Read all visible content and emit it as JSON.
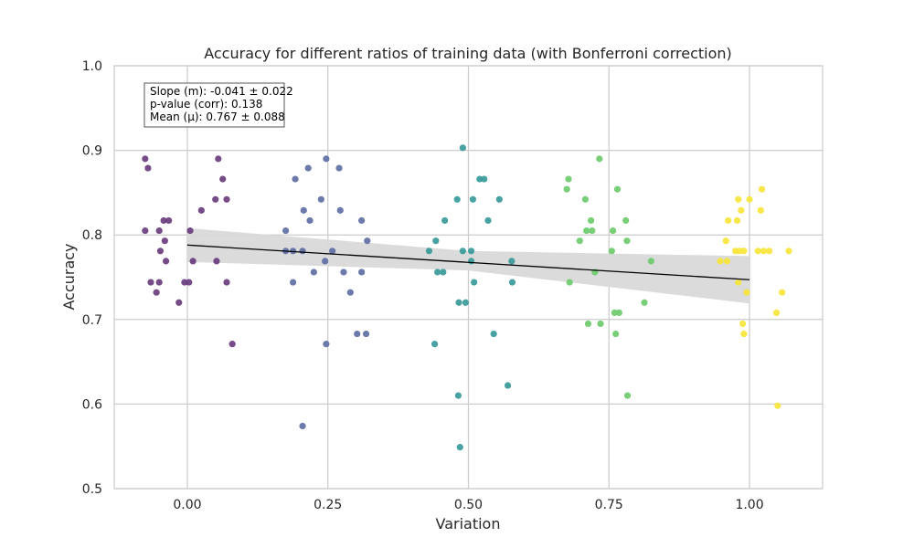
{
  "chart_data": {
    "type": "scatter",
    "title": "Accuracy for different ratios of training data (with Bonferroni correction)",
    "xlabel": "Variation",
    "ylabel": "Accuracy",
    "xlim": [
      -0.13,
      1.13
    ],
    "ylim": [
      0.5,
      1.0
    ],
    "x_ticks": [
      0.0,
      0.25,
      0.5,
      0.75,
      1.0
    ],
    "x_tick_labels": [
      "0.00",
      "0.25",
      "0.50",
      "0.75",
      "1.00"
    ],
    "y_ticks": [
      0.5,
      0.6,
      0.7,
      0.8,
      0.9,
      1.0
    ],
    "y_tick_labels": [
      "0.5",
      "0.6",
      "0.7",
      "0.8",
      "0.9",
      "1.0"
    ],
    "grid": true,
    "annotation": {
      "lines": [
        "Slope (m): -0.041 ± 0.022",
        "p-value (corr): 0.138",
        "Mean (μ): 0.767 ± 0.088"
      ],
      "placement": "top-left"
    },
    "regression": {
      "color": "#000000",
      "band_color": "#d9d9d9",
      "points": [
        [
          0.0,
          0.788
        ],
        [
          1.0,
          0.747
        ]
      ],
      "band_upper": [
        [
          0.0,
          0.808
        ],
        [
          0.5,
          0.781
        ],
        [
          1.0,
          0.775
        ]
      ],
      "band_lower": [
        [
          0.0,
          0.768
        ],
        [
          0.5,
          0.758
        ],
        [
          1.0,
          0.719
        ]
      ]
    },
    "series": [
      {
        "color": "#6a3d7e",
        "points": [
          [
            -0.075,
            0.89
          ],
          [
            -0.07,
            0.879
          ],
          [
            -0.075,
            0.805
          ],
          [
            -0.065,
            0.744
          ],
          [
            -0.055,
            0.732
          ],
          [
            -0.05,
            0.744
          ],
          [
            -0.05,
            0.805
          ],
          [
            -0.048,
            0.781
          ],
          [
            -0.042,
            0.817
          ],
          [
            -0.04,
            0.793
          ],
          [
            -0.038,
            0.769
          ],
          [
            -0.033,
            0.817
          ],
          [
            -0.015,
            0.72
          ],
          [
            -0.005,
            0.744
          ],
          [
            0.003,
            0.744
          ],
          [
            0.005,
            0.805
          ],
          [
            0.01,
            0.769
          ],
          [
            0.025,
            0.829
          ],
          [
            0.05,
            0.842
          ],
          [
            0.052,
            0.769
          ],
          [
            0.055,
            0.89
          ],
          [
            0.063,
            0.866
          ],
          [
            0.07,
            0.842
          ],
          [
            0.07,
            0.744
          ],
          [
            0.08,
            0.671
          ]
        ]
      },
      {
        "color": "#5e6ea4",
        "points": [
          [
            0.175,
            0.805
          ],
          [
            0.175,
            0.781
          ],
          [
            0.188,
            0.781
          ],
          [
            0.188,
            0.744
          ],
          [
            0.192,
            0.866
          ],
          [
            0.205,
            0.781
          ],
          [
            0.205,
            0.574
          ],
          [
            0.207,
            0.829
          ],
          [
            0.215,
            0.879
          ],
          [
            0.218,
            0.817
          ],
          [
            0.225,
            0.756
          ],
          [
            0.238,
            0.842
          ],
          [
            0.245,
            0.769
          ],
          [
            0.247,
            0.89
          ],
          [
            0.247,
            0.671
          ],
          [
            0.258,
            0.781
          ],
          [
            0.27,
            0.879
          ],
          [
            0.272,
            0.829
          ],
          [
            0.278,
            0.756
          ],
          [
            0.29,
            0.732
          ],
          [
            0.302,
            0.683
          ],
          [
            0.31,
            0.817
          ],
          [
            0.31,
            0.756
          ],
          [
            0.318,
            0.683
          ],
          [
            0.32,
            0.793
          ]
        ]
      },
      {
        "color": "#3a9a9a",
        "points": [
          [
            0.43,
            0.781
          ],
          [
            0.44,
            0.671
          ],
          [
            0.442,
            0.793
          ],
          [
            0.445,
            0.756
          ],
          [
            0.455,
            0.756
          ],
          [
            0.458,
            0.817
          ],
          [
            0.48,
            0.842
          ],
          [
            0.482,
            0.61
          ],
          [
            0.483,
            0.72
          ],
          [
            0.485,
            0.549
          ],
          [
            0.49,
            0.781
          ],
          [
            0.49,
            0.903
          ],
          [
            0.495,
            0.72
          ],
          [
            0.505,
            0.769
          ],
          [
            0.505,
            0.781
          ],
          [
            0.508,
            0.842
          ],
          [
            0.51,
            0.744
          ],
          [
            0.52,
            0.866
          ],
          [
            0.528,
            0.866
          ],
          [
            0.535,
            0.817
          ],
          [
            0.545,
            0.683
          ],
          [
            0.555,
            0.842
          ],
          [
            0.57,
            0.622
          ],
          [
            0.577,
            0.769
          ],
          [
            0.578,
            0.744
          ]
        ]
      },
      {
        "color": "#6ccb6c",
        "points": [
          [
            0.675,
            0.854
          ],
          [
            0.678,
            0.866
          ],
          [
            0.68,
            0.744
          ],
          [
            0.698,
            0.793
          ],
          [
            0.708,
            0.842
          ],
          [
            0.71,
            0.805
          ],
          [
            0.713,
            0.695
          ],
          [
            0.718,
            0.817
          ],
          [
            0.72,
            0.805
          ],
          [
            0.725,
            0.756
          ],
          [
            0.733,
            0.89
          ],
          [
            0.735,
            0.695
          ],
          [
            0.755,
            0.781
          ],
          [
            0.757,
            0.805
          ],
          [
            0.76,
            0.708
          ],
          [
            0.762,
            0.683
          ],
          [
            0.765,
            0.854
          ],
          [
            0.768,
            0.708
          ],
          [
            0.78,
            0.817
          ],
          [
            0.782,
            0.793
          ],
          [
            0.783,
            0.61
          ],
          [
            0.813,
            0.72
          ],
          [
            0.825,
            0.769
          ]
        ]
      },
      {
        "color": "#f7e53a",
        "points": [
          [
            0.948,
            0.769
          ],
          [
            0.958,
            0.793
          ],
          [
            0.96,
            0.769
          ],
          [
            0.962,
            0.817
          ],
          [
            0.975,
            0.781
          ],
          [
            0.978,
            0.817
          ],
          [
            0.98,
            0.842
          ],
          [
            0.98,
            0.744
          ],
          [
            0.982,
            0.781
          ],
          [
            0.985,
            0.829
          ],
          [
            0.988,
            0.695
          ],
          [
            0.99,
            0.781
          ],
          [
            0.99,
            0.683
          ],
          [
            0.995,
            0.732
          ],
          [
            1.0,
            0.842
          ],
          [
            1.015,
            0.781
          ],
          [
            1.02,
            0.829
          ],
          [
            1.022,
            0.854
          ],
          [
            1.025,
            0.781
          ],
          [
            1.035,
            0.781
          ],
          [
            1.048,
            0.708
          ],
          [
            1.05,
            0.598
          ],
          [
            1.058,
            0.732
          ],
          [
            1.07,
            0.781
          ]
        ]
      }
    ]
  }
}
